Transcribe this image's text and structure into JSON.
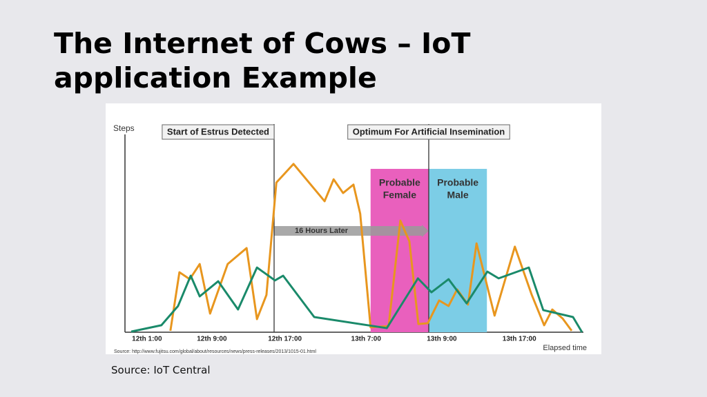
{
  "slide": {
    "title": "The Internet of Cows – IoT application Example",
    "caption": "Source: IoT Central"
  },
  "chart_data": {
    "type": "line",
    "ylabel": "Steps",
    "xlabel": "Elapsed time",
    "source": "Source: http://www.fujitsu.com/global/about/resources/news/press-releases/2013/1015-01.html",
    "xlim": [
      0,
      100
    ],
    "ylim": [
      0,
      100
    ],
    "xticks": [
      {
        "value": 3.5,
        "label": "12th 1:00"
      },
      {
        "value": 17.9,
        "label": "12th 9:00"
      },
      {
        "value": 34.1,
        "label": "12th 17:00"
      },
      {
        "value": 52.1,
        "label": "13th 7:00"
      },
      {
        "value": 68.9,
        "label": "13th 9:00"
      },
      {
        "value": 86.1,
        "label": "13th 17:00"
      }
    ],
    "grid": false,
    "markers": [
      {
        "label": "Start of Estrus Detected",
        "x": 31.7
      },
      {
        "label": "Optimum For Artificial Insemination",
        "x": 66.0
      }
    ],
    "arrow": {
      "label": "16 Hours Later"
    },
    "bands": [
      {
        "label": [
          "Probable",
          "Female"
        ],
        "from": 53.1,
        "to": 66.0,
        "color": "#e960bd"
      },
      {
        "label": [
          "Probable",
          "Male"
        ],
        "from": 66.0,
        "to": 78.9,
        "color": "#7ccde6"
      }
    ],
    "series": [
      {
        "color": "#e8961e",
        "x": [
          8.7,
          10.7,
          13.0,
          15.2,
          17.5,
          21.4,
          25.6,
          27.9,
          30.0,
          32.2,
          36.0,
          42.9,
          44.9,
          47.0,
          49.3,
          50.8,
          53.1,
          57.1,
          59.7,
          61.7,
          63.7,
          65.8,
          68.3,
          70.4,
          72.3,
          74.7,
          76.6,
          80.6,
          85.1,
          88.8,
          91.6,
          93.4,
          95.7,
          97.7
        ],
        "values": [
          0.7,
          29.3,
          25.9,
          33.3,
          9.1,
          33.3,
          41.1,
          6.4,
          18.2,
          73.1,
          82.2,
          64.0,
          74.7,
          68.0,
          72.1,
          57.9,
          2.4,
          3.0,
          54.5,
          44.4,
          4.0,
          4.4,
          15.5,
          12.8,
          20.9,
          13.5,
          43.4,
          8.1,
          41.8,
          18.5,
          3.4,
          11.1,
          6.7,
          0.7
        ]
      },
      {
        "color": "#1a8a6a",
        "x": [
          0,
          6.7,
          10.4,
          13.2,
          15.2,
          19.3,
          23.7,
          27.9,
          31.9,
          33.7,
          40.6,
          56.7,
          63.6,
          66.6,
          70.4,
          74.4,
          79.0,
          81.5,
          88.2,
          91.4,
          98.0,
          100
        ],
        "values": [
          0.3,
          3.4,
          12.8,
          27.6,
          17.5,
          24.9,
          11.1,
          31.6,
          25.3,
          27.6,
          7.4,
          2.0,
          26.3,
          19.5,
          25.9,
          14.1,
          29.6,
          26.3,
          31.6,
          10.8,
          7.4,
          0
        ]
      }
    ]
  }
}
